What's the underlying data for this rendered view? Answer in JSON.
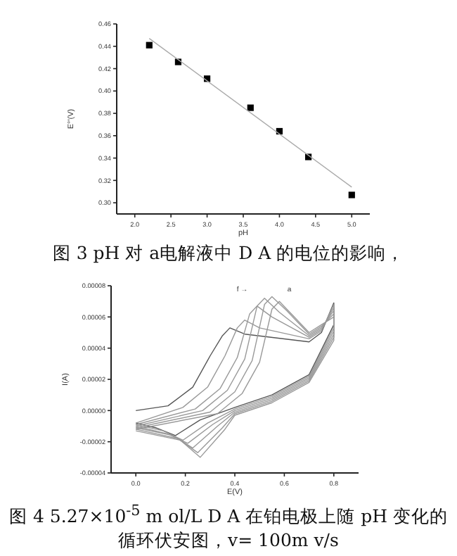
{
  "chart_data": [
    {
      "type": "scatter",
      "title": "图 3 pH 对 a电解液中 D A 的电位的影响，",
      "xlabel": "pH",
      "ylabel": "E°'(V)",
      "xlim": [
        1.75,
        5.25
      ],
      "ylim": [
        0.29,
        0.46
      ],
      "xticks": [
        {
          "value": 2,
          "label": "2.0"
        },
        {
          "value": 2.5,
          "label": "2.5"
        },
        {
          "value": 3,
          "label": "3.0"
        },
        {
          "value": 3.5,
          "label": "3.5"
        },
        {
          "value": 4,
          "label": "4.0"
        },
        {
          "value": 4.5,
          "label": "4.5"
        },
        {
          "value": 5,
          "label": "5.0"
        }
      ],
      "yticks": [
        {
          "value": 0.3,
          "label": "0.30"
        },
        {
          "value": 0.32,
          "label": "0.32"
        },
        {
          "value": 0.34,
          "label": "0.34"
        },
        {
          "value": 0.36,
          "label": "0.36"
        },
        {
          "value": 0.38,
          "label": "0.38"
        },
        {
          "value": 0.4,
          "label": "0.40"
        },
        {
          "value": 0.42,
          "label": "0.42"
        },
        {
          "value": 0.44,
          "label": "0.44"
        },
        {
          "value": 0.46,
          "label": "0.46"
        }
      ],
      "series": [
        {
          "type": "scatter",
          "marker": "square",
          "color": "#000000",
          "x": [
            2.2,
            2.6,
            3.0,
            3.6,
            4.0,
            4.4,
            5.0
          ],
          "values": [
            0.441,
            0.426,
            0.411,
            0.385,
            0.364,
            0.341,
            0.307
          ]
        },
        {
          "type": "line",
          "color": "#aaaaaa",
          "x": [
            2.2,
            5.0
          ],
          "values": [
            0.447,
            0.314
          ]
        }
      ]
    },
    {
      "type": "line",
      "title": "图 4 5.27×10$^{-5}$ m ol/L D A 在铂电极上随 pH 变化的循环伏安图，v= 100m v/s",
      "xlabel": "E(V)",
      "ylabel": "I(A)",
      "annotations": [
        "f →",
        "a"
      ],
      "xlim": [
        -0.1,
        0.9
      ],
      "ylim": [
        -4e-05,
        8e-05
      ],
      "xticks": [
        {
          "value": 0,
          "label": "0.0"
        },
        {
          "value": 0.2,
          "label": "0.2"
        },
        {
          "value": 0.4,
          "label": "0.4"
        },
        {
          "value": 0.6,
          "label": "0.6"
        },
        {
          "value": 0.8,
          "label": "0.8"
        }
      ],
      "yticks": [
        {
          "value": -4e-05,
          "label": "-0.00004"
        },
        {
          "value": -2e-05,
          "label": "-0.00002"
        },
        {
          "value": 0,
          "label": "0.00000"
        },
        {
          "value": 2e-05,
          "label": "0.00002"
        },
        {
          "value": 4e-05,
          "label": "0.00004"
        },
        {
          "value": 6e-05,
          "label": "0.00006"
        },
        {
          "value": 8e-05,
          "label": "0.00008"
        }
      ],
      "series": [
        {
          "color": "#555555",
          "x": [
            0,
            0.13,
            0.23,
            0.3,
            0.35,
            0.38,
            0.44,
            0.7,
            0.75,
            0.8,
            0.8,
            0.7,
            0.55,
            0.4,
            0.26,
            0.16,
            0.08,
            0.0
          ],
          "values": [
            0,
            3e-06,
            1.5e-05,
            3.5e-05,
            4.8e-05,
            5.3e-05,
            4.9e-05,
            4.4e-05,
            5e-05,
            6.9e-05,
            5.5e-05,
            2.3e-05,
            1e-05,
            2e-06,
            -6e-06,
            -1.6e-05,
            -1.1e-05,
            -8e-06
          ]
        },
        {
          "color": "#999999",
          "x": [
            0,
            0.19,
            0.29,
            0.36,
            0.41,
            0.44,
            0.5,
            0.7,
            0.75,
            0.8,
            0.8,
            0.7,
            0.55,
            0.4,
            0.29,
            0.19,
            0.11,
            0.0
          ],
          "values": [
            -8e-06,
            2e-06,
            1.5e-05,
            3.5e-05,
            5.3e-05,
            5.8e-05,
            5.3e-05,
            4.6e-05,
            5.1e-05,
            6.8e-05,
            5.3e-05,
            2.2e-05,
            9e-06,
            1e-06,
            -8e-06,
            -1.9e-05,
            -1.3e-05,
            -9e-06
          ]
        },
        {
          "color": "#999999",
          "x": [
            0,
            0.24,
            0.34,
            0.41,
            0.46,
            0.49,
            0.55,
            0.7,
            0.75,
            0.8,
            0.8,
            0.7,
            0.55,
            0.4,
            0.31,
            0.21,
            0.13,
            0.0
          ],
          "values": [
            -9e-06,
            1e-06,
            1.4e-05,
            3.4e-05,
            6.2e-05,
            6.7e-05,
            6e-05,
            4.7e-05,
            5.2e-05,
            6.6e-05,
            5.1e-05,
            2.1e-05,
            8e-06,
            0,
            -9e-06,
            -2.1e-05,
            -1.5e-05,
            -1e-05
          ]
        },
        {
          "color": "#999999",
          "x": [
            0,
            0.27,
            0.37,
            0.44,
            0.49,
            0.52,
            0.58,
            0.7,
            0.75,
            0.8,
            0.8,
            0.7,
            0.55,
            0.4,
            0.33,
            0.23,
            0.15,
            0.0
          ],
          "values": [
            -1e-05,
            0,
            1.3e-05,
            3.3e-05,
            6.7e-05,
            7.2e-05,
            6.3e-05,
            4.8e-05,
            5.3e-05,
            6.4e-05,
            4.9e-05,
            2e-05,
            7e-06,
            -1e-06,
            -1e-05,
            -2.4e-05,
            -1.6e-05,
            -1.1e-05
          ]
        },
        {
          "color": "#999999",
          "x": [
            0,
            0.3,
            0.4,
            0.47,
            0.52,
            0.55,
            0.61,
            0.7,
            0.75,
            0.8,
            0.8,
            0.7,
            0.55,
            0.4,
            0.35,
            0.25,
            0.17,
            0.0
          ],
          "values": [
            -1.1e-05,
            -1e-06,
            1.2e-05,
            3.2e-05,
            6.8e-05,
            7.3e-05,
            6.4e-05,
            4.9e-05,
            5.4e-05,
            6.2e-05,
            4.7e-05,
            1.9e-05,
            6e-06,
            -2e-06,
            -1.1e-05,
            -2.7e-05,
            -1.8e-05,
            -1.2e-05
          ]
        },
        {
          "color": "#999999",
          "x": [
            0,
            0.33,
            0.43,
            0.5,
            0.55,
            0.58,
            0.64,
            0.7,
            0.75,
            0.8,
            0.8,
            0.7,
            0.55,
            0.4,
            0.36,
            0.26,
            0.18,
            0.0
          ],
          "values": [
            -1.2e-05,
            -2e-06,
            1.1e-05,
            3.1e-05,
            6.5e-05,
            7e-05,
            6e-05,
            5e-05,
            5.5e-05,
            6e-05,
            4.5e-05,
            1.8e-05,
            5e-06,
            -3e-06,
            -1.2e-05,
            -3e-05,
            -1.9e-05,
            -1.3e-05
          ]
        }
      ]
    }
  ]
}
